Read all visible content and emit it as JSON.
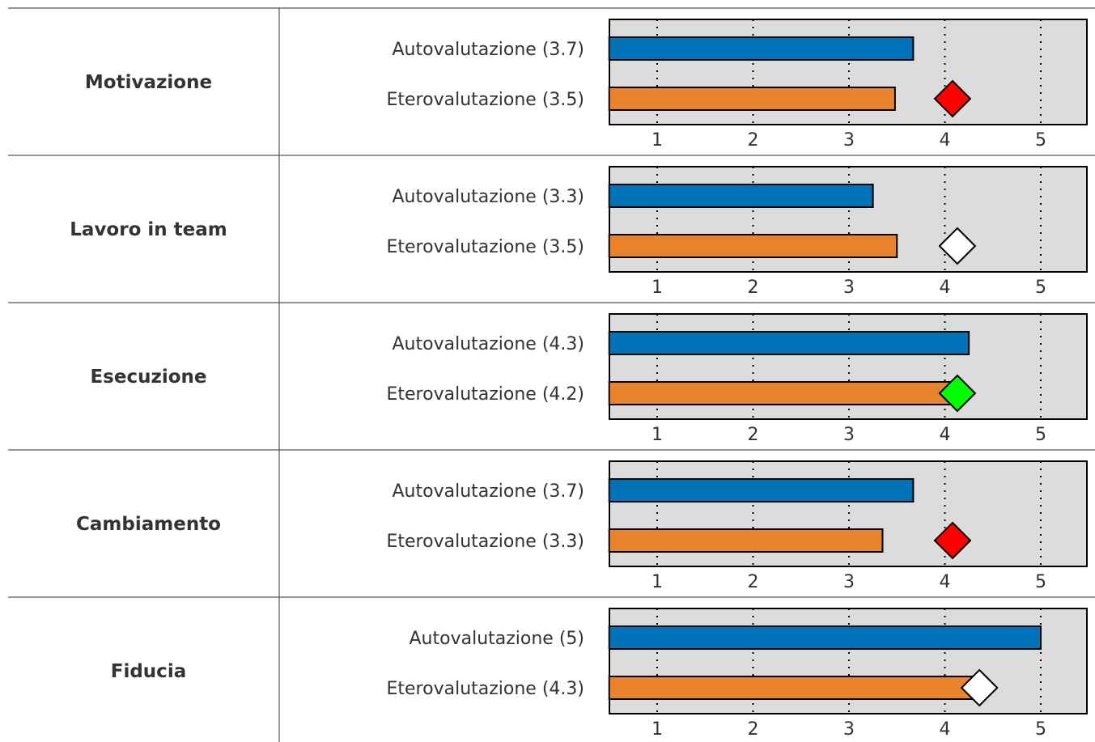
{
  "chart_data": {
    "type": "bar",
    "orientation": "horizontal",
    "axis": {
      "xlim": [
        0.5,
        5.5
      ],
      "ticks": [
        1,
        2,
        3,
        4,
        5
      ],
      "grid": "dotted-vertical"
    },
    "colors": {
      "autovalutazione": "#0072b8",
      "eterovalutazione": "#e8832b",
      "panel": "#dcdcdc"
    },
    "rows": [
      {
        "category": "Motivazione",
        "bars": [
          {
            "label": "Autovalutazione (3.7)",
            "value": 3.67
          },
          {
            "label": "Eterovalutazione (3.5)",
            "value": 3.48
          }
        ],
        "marker": {
          "value": 4.08,
          "color": "#ff0000"
        }
      },
      {
        "category": "Lavoro in team",
        "bars": [
          {
            "label": "Autovalutazione (3.3)",
            "value": 3.25
          },
          {
            "label": "Eterovalutazione (3.5)",
            "value": 3.5
          }
        ],
        "marker": {
          "value": 4.13,
          "color": "#ffffff"
        }
      },
      {
        "category": "Esecuzione",
        "bars": [
          {
            "label": "Autovalutazione (4.3)",
            "value": 4.25
          },
          {
            "label": "Eterovalutazione (4.2)",
            "value": 4.15
          }
        ],
        "marker": {
          "value": 4.13,
          "color": "#00ff00"
        }
      },
      {
        "category": "Cambiamento",
        "bars": [
          {
            "label": "Autovalutazione (3.7)",
            "value": 3.67
          },
          {
            "label": "Eterovalutazione (3.3)",
            "value": 3.35
          }
        ],
        "marker": {
          "value": 4.08,
          "color": "#ff0000"
        }
      },
      {
        "category": "Fiducia",
        "bars": [
          {
            "label": "Autovalutazione (5)",
            "value": 5.0
          },
          {
            "label": "Eterovalutazione (4.3)",
            "value": 4.28
          }
        ],
        "marker": {
          "value": 4.36,
          "color": "#ffffff"
        }
      }
    ]
  }
}
